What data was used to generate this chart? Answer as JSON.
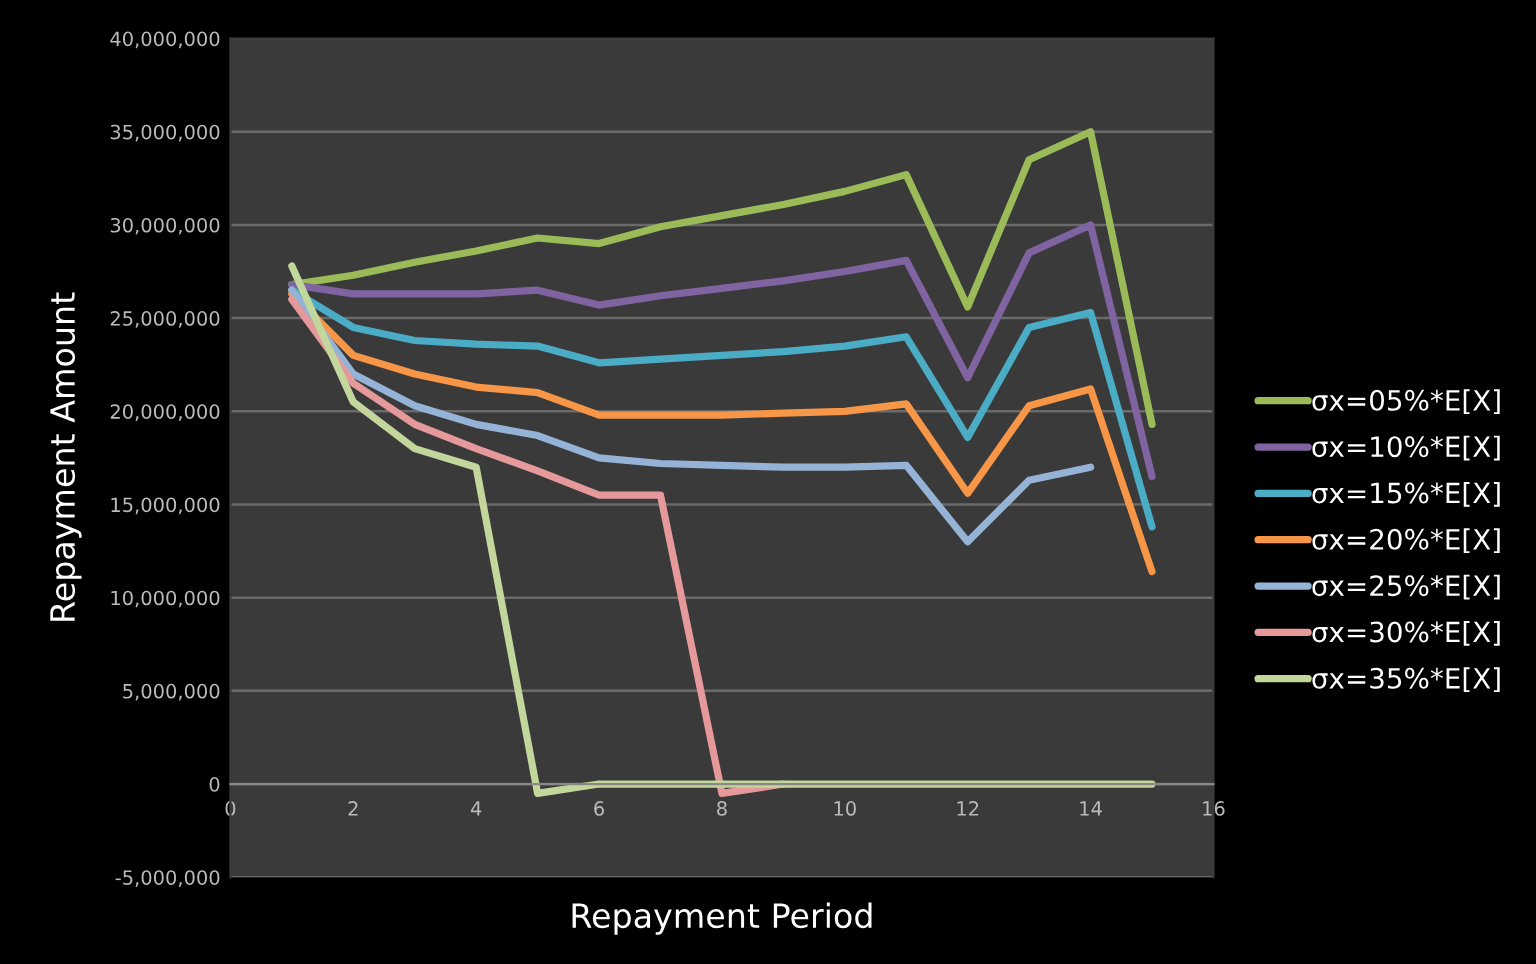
{
  "chart_data": {
    "type": "line",
    "xlabel": "Repayment Period",
    "ylabel": "Repayment Amount",
    "x": [
      1,
      2,
      3,
      4,
      5,
      6,
      7,
      8,
      9,
      10,
      11,
      12,
      13,
      14,
      15
    ],
    "series": [
      {
        "name": "σx=05%*E[X]",
        "color": "#9bbb59",
        "values": [
          26800000,
          27300000,
          28000000,
          28600000,
          29300000,
          29000000,
          29900000,
          30500000,
          31100000,
          31800000,
          32700000,
          25600000,
          33500000,
          35000000,
          19300000
        ]
      },
      {
        "name": "σx=10%*E[X]",
        "color": "#8064a2",
        "values": [
          26800000,
          26300000,
          26300000,
          26300000,
          26500000,
          25700000,
          26200000,
          26600000,
          27000000,
          27500000,
          28100000,
          21800000,
          28500000,
          30000000,
          16500000
        ]
      },
      {
        "name": "σx=15%*E[X]",
        "color": "#4bacc6",
        "values": [
          26500000,
          24500000,
          23800000,
          23600000,
          23500000,
          22600000,
          22800000,
          23000000,
          23200000,
          23500000,
          24000000,
          18600000,
          24500000,
          25300000,
          13800000
        ]
      },
      {
        "name": "σx=20%*E[X]",
        "color": "#f79646",
        "values": [
          26300000,
          23000000,
          22000000,
          21300000,
          21000000,
          19800000,
          19800000,
          19800000,
          19900000,
          20000000,
          20400000,
          15600000,
          20300000,
          21200000,
          11400000
        ]
      },
      {
        "name": "σx=25%*E[X]",
        "color": "#95b3d7",
        "values": [
          26500000,
          22000000,
          20300000,
          19300000,
          18700000,
          17500000,
          17200000,
          17100000,
          17000000,
          17000000,
          17100000,
          13000000,
          16300000,
          17000000,
          null
        ]
      },
      {
        "name": "σx=30%*E[X]",
        "color": "#e6999b",
        "values": [
          26000000,
          21500000,
          19300000,
          18000000,
          16800000,
          15500000,
          15500000,
          -500000,
          0,
          null,
          null,
          null,
          null,
          null,
          null
        ]
      },
      {
        "name": "σx=35%*E[X]",
        "color": "#c3d69b",
        "values": [
          27800000,
          20500000,
          18000000,
          17000000,
          -500000,
          0,
          0,
          0,
          0,
          0,
          0,
          0,
          0,
          0,
          0
        ]
      }
    ],
    "xlim": [
      0,
      16
    ],
    "xticks": [
      0,
      2,
      4,
      6,
      8,
      10,
      12,
      14,
      16
    ],
    "ylim": [
      -5000000,
      40000000
    ],
    "yticks": [
      {
        "value": -5000000,
        "label": "-5,000,000"
      },
      {
        "value": 0,
        "label": "0"
      },
      {
        "value": 5000000,
        "label": "5,000,000"
      },
      {
        "value": 10000000,
        "label": "10,000,000"
      },
      {
        "value": 15000000,
        "label": "15,000,000"
      },
      {
        "value": 20000000,
        "label": "20,000,000"
      },
      {
        "value": 25000000,
        "label": "25,000,000"
      },
      {
        "value": 30000000,
        "label": "30,000,000"
      },
      {
        "value": 35000000,
        "label": "35,000,000"
      },
      {
        "value": 40000000,
        "label": "40,000,000"
      }
    ],
    "grid": "y",
    "legend": "right",
    "marker": "none",
    "line_style": "solid"
  }
}
